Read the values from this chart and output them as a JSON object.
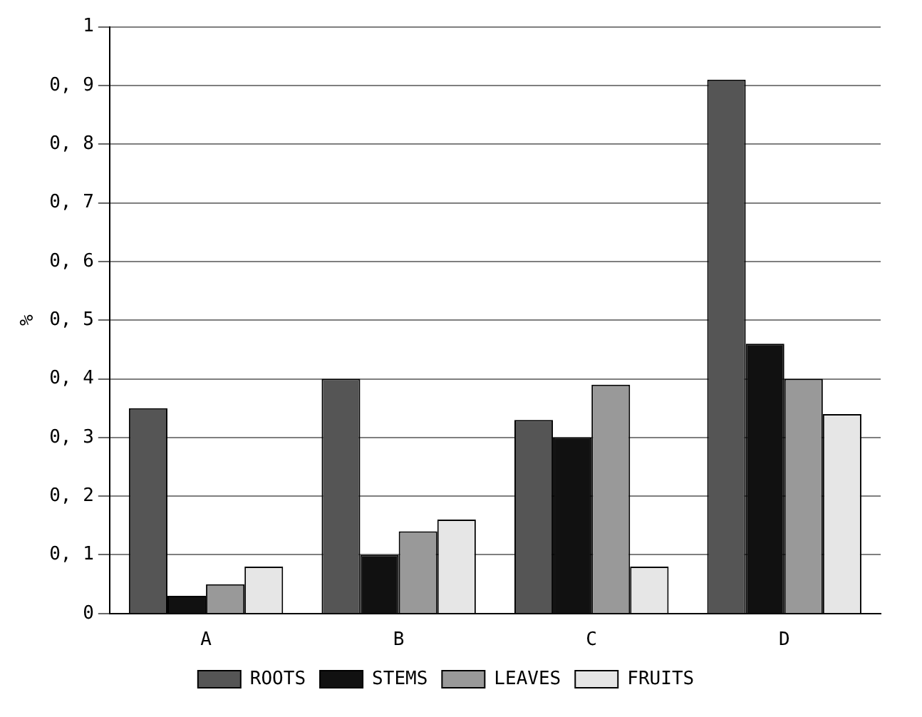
{
  "chart_data": {
    "type": "bar",
    "ylabel": "%",
    "categories": [
      "A",
      "B",
      "C",
      "D"
    ],
    "series": [
      {
        "name": "ROOTS",
        "color": "#555555",
        "values": [
          0.35,
          0.4,
          0.33,
          0.91
        ]
      },
      {
        "name": "STEMS",
        "color": "#111111",
        "values": [
          0.03,
          0.1,
          0.3,
          0.46
        ]
      },
      {
        "name": "LEAVES",
        "color": "#999999",
        "values": [
          0.05,
          0.14,
          0.39,
          0.4
        ]
      },
      {
        "name": "FRUITS",
        "color": "#e6e6e6",
        "values": [
          0.08,
          0.16,
          0.08,
          0.34
        ]
      }
    ],
    "ylim": [
      0,
      1
    ],
    "yticks": [
      0,
      {
        "value": 0.1,
        "label": "0, 1"
      },
      {
        "value": 0.2,
        "label": "0, 2"
      },
      {
        "value": 0.3,
        "label": "0, 3"
      },
      {
        "value": 0.4,
        "label": "0, 4"
      },
      {
        "value": 0.5,
        "label": "0, 5"
      },
      {
        "value": 0.6,
        "label": "0, 6"
      },
      {
        "value": 0.7,
        "label": "0, 7"
      },
      {
        "value": 0.8,
        "label": "0, 8"
      },
      {
        "value": 0.9,
        "label": "0, 9"
      },
      1
    ],
    "grid": "y",
    "legend": "bottom"
  }
}
